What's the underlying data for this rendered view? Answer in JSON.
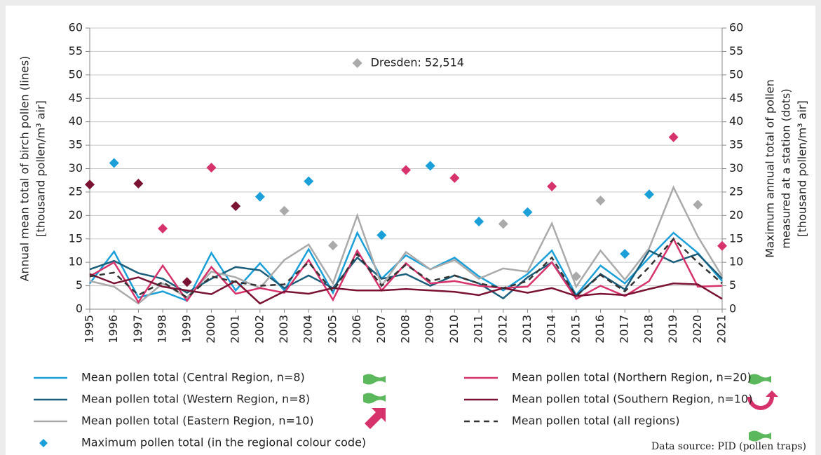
{
  "chart_data": {
    "type": "line",
    "categories": [
      "1995",
      "1996",
      "1997",
      "1998",
      "1999",
      "2000",
      "2001",
      "2002",
      "2003",
      "2004",
      "2005",
      "2006",
      "2007",
      "2008",
      "2009",
      "2010",
      "2011",
      "2012",
      "2013",
      "2014",
      "2015",
      "2016",
      "2017",
      "2018",
      "2019",
      "2020",
      "2021"
    ],
    "y_label": [
      "Annual mean total of birch pollen (lines)",
      "[thousand pollen/m³ air]"
    ],
    "y2_label": [
      "Maximum annual total of pollen",
      "measured at a station (dots)",
      "[thousand pollen/m³ air]"
    ],
    "ylim": [
      0,
      60
    ],
    "yticks": [
      0,
      5,
      10,
      15,
      20,
      25,
      30,
      35,
      40,
      45,
      50,
      55,
      60
    ],
    "y2lim": [
      0,
      60
    ],
    "y2ticks": [
      0,
      5,
      10,
      15,
      20,
      25,
      30,
      35,
      40,
      45,
      50,
      55,
      60
    ],
    "grid": true,
    "series": [
      {
        "name": "Mean pollen total (Central Region, n=8)",
        "color": "#1a9fd9",
        "values": [
          5.5,
          12.3,
          2.5,
          3.8,
          1.8,
          12,
          4,
          9.8,
          4,
          12.8,
          3.5,
          16.3,
          6.5,
          11.5,
          8.5,
          11,
          7,
          4,
          7.5,
          12.5,
          3,
          9.3,
          5.5,
          11,
          16.3,
          12,
          6
        ]
      },
      {
        "name": "Mean pollen total (Western Region, n=8)",
        "color": "#1b5e7b",
        "values": [
          8.5,
          10.3,
          7.7,
          6.5,
          3.5,
          6.5,
          9,
          8.3,
          4.5,
          7.2,
          4.5,
          11,
          6.5,
          7.5,
          5,
          7.2,
          5.5,
          2.3,
          6.8,
          10,
          2.8,
          7.5,
          4.2,
          12.5,
          10,
          11.8,
          6.5
        ]
      },
      {
        "name": "Mean pollen total (Eastern Region, n=10)",
        "color": "#aaaaaa",
        "values": [
          6,
          4.8,
          1.2,
          5.5,
          2.5,
          8,
          6.8,
          4.5,
          10.5,
          13.8,
          5.5,
          20,
          5,
          12.2,
          8.5,
          10.5,
          6.5,
          8.7,
          8,
          18.3,
          4.8,
          12.5,
          6.3,
          13,
          26,
          15.5,
          7
        ]
      },
      {
        "name": "Mean pollen total (Northern Region, n=20)",
        "color": "#d6336c",
        "values": [
          7,
          10,
          1.5,
          9.3,
          1.8,
          9,
          3.3,
          4.5,
          3.5,
          10.5,
          2,
          12.5,
          4,
          9.8,
          5.5,
          6,
          5,
          4.5,
          4.8,
          10,
          2.2,
          5,
          2.8,
          6,
          15,
          4.8,
          5
        ]
      },
      {
        "name": "Mean pollen total (Southern Region, n=10)",
        "color": "#7a1232",
        "values": [
          7.5,
          5.5,
          6.8,
          4.8,
          4,
          3.2,
          6,
          1.2,
          3.8,
          3.3,
          4.5,
          4,
          4,
          4.3,
          4,
          3.7,
          3,
          4.5,
          3.5,
          4.5,
          2.8,
          3.3,
          3,
          4.3,
          5.5,
          5.3,
          2.2
        ]
      },
      {
        "name": "Mean pollen total (all regions)",
        "color": "#333333",
        "dashed": true,
        "values": [
          7,
          7.8,
          3,
          5.8,
          2.5,
          7,
          5.8,
          5,
          5.3,
          10,
          3.8,
          11.8,
          5,
          9.5,
          6,
          7.2,
          5.5,
          4.5,
          6,
          11,
          2.8,
          7.3,
          3.8,
          9,
          15,
          10,
          5.5
        ]
      },
      {
        "name": "Maximum pollen total (in the regional colour code)",
        "type": "scatter",
        "axis": "y2",
        "color": "#1a9fd9",
        "values": [
          26.6,
          31.2,
          26.8,
          17.2,
          5.8,
          30.2,
          22,
          24,
          21,
          27.3,
          13.6,
          52.514,
          15.8,
          29.7,
          30.6,
          28,
          18.7,
          18.2,
          20.7,
          26.2,
          7,
          23.2,
          11.8,
          24.5,
          36.7,
          22.3,
          13.5
        ],
        "colors": [
          "#7a1232",
          "#1a9fd9",
          "#7a1232",
          "#d6336c",
          "#7a1232",
          "#d6336c",
          "#7a1232",
          "#1a9fd9",
          "#aaaaaa",
          "#1a9fd9",
          "#aaaaaa",
          "#aaaaaa",
          "#1a9fd9",
          "#d6336c",
          "#1a9fd9",
          "#d6336c",
          "#1a9fd9",
          "#aaaaaa",
          "#1a9fd9",
          "#d6336c",
          "#aaaaaa",
          "#aaaaaa",
          "#1a9fd9",
          "#1a9fd9",
          "#d6336c",
          "#aaaaaa",
          "#d6336c"
        ]
      }
    ],
    "annotation": "Dresden: 52,514",
    "source": "Data source: PID (pollen traps)"
  }
}
